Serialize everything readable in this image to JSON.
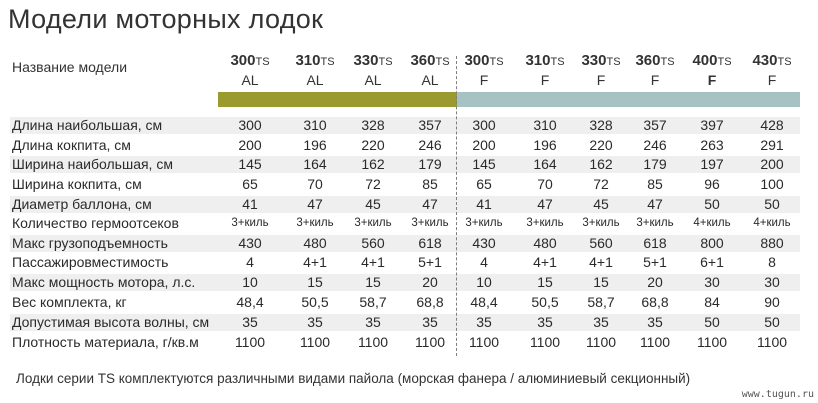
{
  "title": "Модели моторных лодок",
  "header_label": "Название модели",
  "models": [
    {
      "num": "300",
      "suffix": "TS",
      "series": "AL"
    },
    {
      "num": "310",
      "suffix": "TS",
      "series": "AL"
    },
    {
      "num": "330",
      "suffix": "TS",
      "series": "AL"
    },
    {
      "num": "360",
      "suffix": "TS",
      "series": "AL"
    },
    {
      "num": "300",
      "suffix": "TS",
      "series": "F"
    },
    {
      "num": "310",
      "suffix": "TS",
      "series": "F"
    },
    {
      "num": "330",
      "suffix": "TS",
      "series": "F"
    },
    {
      "num": "360",
      "suffix": "TS",
      "series": "F"
    },
    {
      "num": "400",
      "suffix": "TS",
      "series": "F"
    },
    {
      "num": "430",
      "suffix": "TS",
      "series": "F"
    }
  ],
  "series_colors": {
    "AL": "#9a9a2f",
    "F": "#a7c2c2"
  },
  "rows": [
    {
      "label": "Длина наибольшая, см",
      "values": [
        "300",
        "310",
        "328",
        "357",
        "300",
        "310",
        "328",
        "357",
        "397",
        "428"
      ]
    },
    {
      "label": "Длина кокпита, см",
      "values": [
        "200",
        "196",
        "220",
        "246",
        "200",
        "196",
        "220",
        "246",
        "263",
        "291"
      ]
    },
    {
      "label": "Ширина наибольшая, см",
      "values": [
        "145",
        "164",
        "162",
        "179",
        "145",
        "164",
        "162",
        "179",
        "197",
        "200"
      ]
    },
    {
      "label": "Ширина кокпита, см",
      "values": [
        "65",
        "70",
        "72",
        "85",
        "65",
        "70",
        "72",
        "85",
        "96",
        "100"
      ]
    },
    {
      "label": "Диаметр баллона, см",
      "values": [
        "41",
        "47",
        "45",
        "47",
        "41",
        "47",
        "45",
        "47",
        "50",
        "50"
      ]
    },
    {
      "label": "Количество гермоотсеков",
      "values": [
        "3+киль",
        "3+киль",
        "3+киль",
        "3+киль",
        "3+киль",
        "3+киль",
        "3+киль",
        "3+киль",
        "4+киль",
        "4+киль"
      ]
    },
    {
      "label": "Макс грузоподъемность",
      "values": [
        "430",
        "480",
        "560",
        "618",
        "430",
        "480",
        "560",
        "618",
        "800",
        "880"
      ]
    },
    {
      "label": "Пассажировместимость",
      "values": [
        "4",
        "4+1",
        "4+1",
        "5+1",
        "4",
        "4+1",
        "4+1",
        "5+1",
        "6+1",
        "8"
      ]
    },
    {
      "label": "Макс мощность мотора, л.с.",
      "values": [
        "10",
        "15",
        "15",
        "20",
        "10",
        "15",
        "15",
        "20",
        "30",
        "30"
      ]
    },
    {
      "label": "Вес комплекта, кг",
      "values": [
        "48,4",
        "50,5",
        "58,7",
        "68,8",
        "48,4",
        "50,5",
        "58,7",
        "68,8",
        "84",
        "90"
      ]
    },
    {
      "label": "Допустимая высота волны, см",
      "values": [
        "35",
        "35",
        "35",
        "35",
        "35",
        "35",
        "35",
        "35",
        "50",
        "50"
      ]
    },
    {
      "label": "Плотность материала, г/кв.м",
      "values": [
        "1100",
        "1100",
        "1100",
        "1100",
        "1100",
        "1100",
        "1100",
        "1100",
        "1100",
        "1100"
      ]
    }
  ],
  "footer": "Лодки серии TS комплектуются различными видами пайола (морская фанера / алюминиевый секционный)",
  "watermark": "www.tugun.ru"
}
